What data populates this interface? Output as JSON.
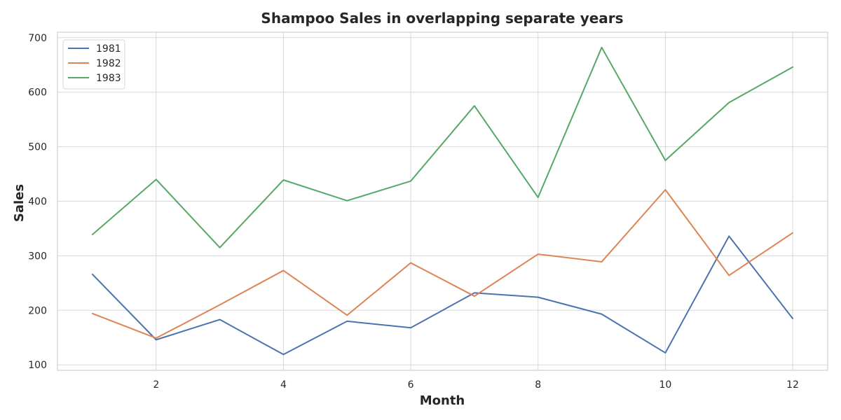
{
  "chart_data": {
    "type": "line",
    "title": "Shampoo Sales in overlapping separate years",
    "xlabel": "Month",
    "ylabel": "Sales",
    "x": [
      1,
      2,
      3,
      4,
      5,
      6,
      7,
      8,
      9,
      10,
      11,
      12
    ],
    "xlim": [
      0.45,
      12.55
    ],
    "ylim": [
      90,
      710
    ],
    "x_ticks": [
      2,
      4,
      6,
      8,
      10,
      12
    ],
    "y_ticks": [
      100,
      200,
      300,
      400,
      500,
      600,
      700
    ],
    "grid": true,
    "legend_position": "top-left",
    "series": [
      {
        "name": "1981",
        "color": "#4c72b0",
        "values": [
          266,
          146,
          183,
          119,
          180,
          168,
          232,
          224,
          193,
          122,
          336,
          185
        ]
      },
      {
        "name": "1982",
        "color": "#dd8452",
        "values": [
          194,
          149,
          210,
          273,
          191,
          287,
          226,
          303,
          289,
          421,
          264,
          342
        ]
      },
      {
        "name": "1983",
        "color": "#55a868",
        "values": [
          339,
          440,
          315,
          439,
          401,
          437,
          575,
          407,
          682,
          475,
          581,
          646
        ]
      }
    ]
  }
}
